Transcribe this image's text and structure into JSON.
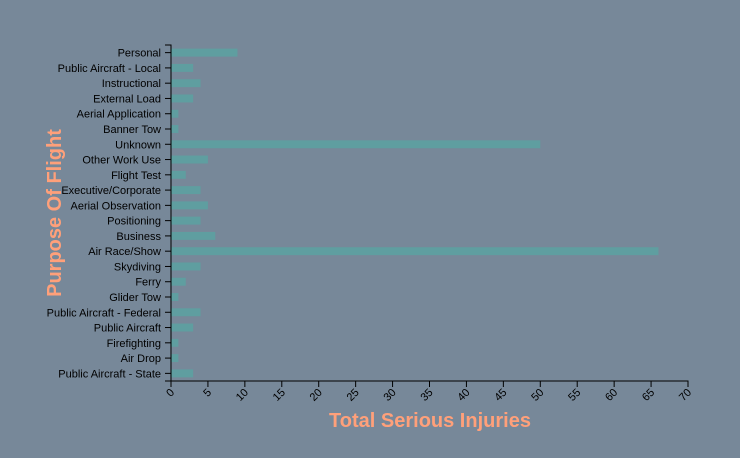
{
  "chart_data": {
    "type": "bar",
    "orientation": "horizontal",
    "xlabel": "Total Serious Injuries",
    "ylabel": "Purpose Of Flight",
    "xlim": [
      0,
      70
    ],
    "x_ticks": [
      "0",
      "5",
      "10",
      "15",
      "20",
      "25",
      "30",
      "35",
      "40",
      "45",
      "50",
      "55",
      "60",
      "65",
      "70"
    ],
    "categories": [
      "Personal",
      "Public Aircraft - Local",
      "Instructional",
      "External Load",
      "Aerial Application",
      "Banner Tow",
      "Unknown",
      "Other Work Use",
      "Flight Test",
      "Executive/Corporate",
      "Aerial Observation",
      "Positioning",
      "Business",
      "Air Race/Show",
      "Skydiving",
      "Ferry",
      "Glider Tow",
      "Public Aircraft - Federal",
      "Public Aircraft",
      "Firefighting",
      "Air Drop",
      "Public Aircraft - State"
    ],
    "values": [
      9,
      3,
      4,
      3,
      1,
      1,
      50,
      5,
      2,
      4,
      5,
      4,
      6,
      66,
      4,
      2,
      1,
      4,
      3,
      1,
      1,
      3
    ],
    "grid": false,
    "legend": "none"
  },
  "colors": {
    "background": "#778899",
    "bar": "#5f9ea0",
    "axis_title": "#ffa07a",
    "axis": "#000000"
  }
}
